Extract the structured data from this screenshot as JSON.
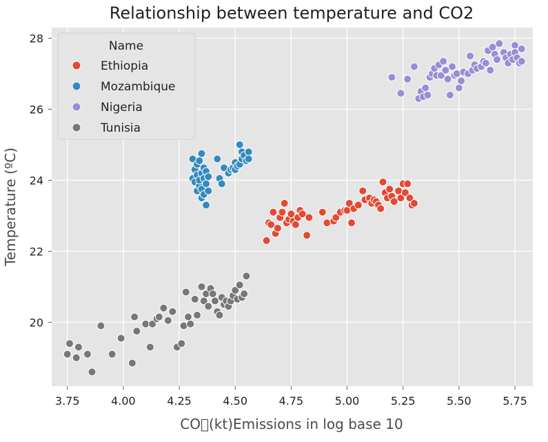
{
  "chart_data": {
    "type": "scatter",
    "title": "Relationship between temperature and CO2",
    "xlabel": "CO\u0000(kt)Emissions in log base 10",
    "ylabel": "Temperature (ºC)",
    "xlim": [
      3.68,
      5.83
    ],
    "ylim": [
      18.2,
      28.3
    ],
    "xticks": [
      "3.75",
      "4.00",
      "4.25",
      "4.50",
      "4.75",
      "5.00",
      "5.25",
      "5.50",
      "5.75"
    ],
    "xtick_values": [
      3.75,
      4.0,
      4.25,
      4.5,
      4.75,
      5.0,
      5.25,
      5.5,
      5.75
    ],
    "yticks": [
      "20",
      "22",
      "24",
      "26",
      "28"
    ],
    "ytick_values": [
      20,
      22,
      24,
      26,
      28
    ],
    "grid": true,
    "background": "#e5e5e5",
    "legend": {
      "title": "Name",
      "position": "top-left"
    },
    "series": [
      {
        "name": "Ethiopia",
        "color": "#e24a33",
        "points": [
          [
            4.64,
            22.3
          ],
          [
            4.65,
            22.8
          ],
          [
            4.66,
            22.75
          ],
          [
            4.67,
            23.1
          ],
          [
            4.68,
            22.5
          ],
          [
            4.69,
            22.65
          ],
          [
            4.7,
            22.95
          ],
          [
            4.71,
            23.1
          ],
          [
            4.72,
            23.35
          ],
          [
            4.73,
            22.8
          ],
          [
            4.74,
            22.9
          ],
          [
            4.75,
            23.05
          ],
          [
            4.76,
            22.85
          ],
          [
            4.77,
            22.75
          ],
          [
            4.78,
            22.95
          ],
          [
            4.79,
            23.15
          ],
          [
            4.8,
            23.05
          ],
          [
            4.82,
            22.45
          ],
          [
            4.83,
            22.95
          ],
          [
            4.89,
            23.1
          ],
          [
            4.91,
            22.8
          ],
          [
            4.94,
            22.85
          ],
          [
            4.95,
            22.95
          ],
          [
            4.97,
            23.1
          ],
          [
            4.99,
            23.15
          ],
          [
            5.0,
            23.15
          ],
          [
            5.01,
            23.35
          ],
          [
            5.02,
            22.8
          ],
          [
            5.03,
            23.2
          ],
          [
            5.05,
            23.3
          ],
          [
            5.07,
            23.7
          ],
          [
            5.08,
            23.45
          ],
          [
            5.1,
            23.5
          ],
          [
            5.11,
            23.35
          ],
          [
            5.12,
            23.45
          ],
          [
            5.13,
            23.4
          ],
          [
            5.14,
            23.3
          ],
          [
            5.15,
            23.2
          ],
          [
            5.16,
            23.95
          ],
          [
            5.17,
            23.65
          ],
          [
            5.18,
            23.5
          ],
          [
            5.19,
            23.75
          ],
          [
            5.2,
            23.55
          ],
          [
            5.21,
            23.4
          ],
          [
            5.23,
            23.7
          ],
          [
            5.24,
            23.5
          ],
          [
            5.25,
            23.9
          ],
          [
            5.26,
            23.65
          ],
          [
            5.27,
            23.9
          ],
          [
            5.28,
            23.5
          ],
          [
            5.29,
            23.3
          ],
          [
            5.3,
            23.35
          ]
        ]
      },
      {
        "name": "Mozambique",
        "color": "#348abd",
        "points": [
          [
            4.31,
            24.05
          ],
          [
            4.31,
            24.6
          ],
          [
            4.32,
            23.95
          ],
          [
            4.32,
            24.3
          ],
          [
            4.33,
            23.7
          ],
          [
            4.33,
            24.45
          ],
          [
            4.33,
            24.15
          ],
          [
            4.34,
            23.85
          ],
          [
            4.34,
            24.55
          ],
          [
            4.34,
            24.0
          ],
          [
            4.35,
            23.5
          ],
          [
            4.35,
            24.2
          ],
          [
            4.35,
            24.75
          ],
          [
            4.35,
            23.75
          ],
          [
            4.36,
            24.35
          ],
          [
            4.36,
            24.05
          ],
          [
            4.36,
            23.6
          ],
          [
            4.37,
            23.3
          ],
          [
            4.37,
            23.9
          ],
          [
            4.37,
            24.25
          ],
          [
            4.38,
            23.7
          ],
          [
            4.38,
            24.1
          ],
          [
            4.42,
            24.6
          ],
          [
            4.43,
            24.05
          ],
          [
            4.44,
            23.9
          ],
          [
            4.45,
            24.35
          ],
          [
            4.47,
            24.2
          ],
          [
            4.48,
            24.3
          ],
          [
            4.49,
            24.35
          ],
          [
            4.5,
            24.5
          ],
          [
            4.5,
            24.3
          ],
          [
            4.51,
            24.4
          ],
          [
            4.52,
            25.0
          ],
          [
            4.52,
            24.45
          ],
          [
            4.53,
            24.6
          ],
          [
            4.53,
            24.8
          ],
          [
            4.54,
            24.7
          ],
          [
            4.55,
            24.55
          ],
          [
            4.56,
            24.8
          ],
          [
            4.56,
            24.6
          ]
        ]
      },
      {
        "name": "Nigeria",
        "color": "#988ed5",
        "points": [
          [
            5.2,
            26.9
          ],
          [
            5.24,
            26.45
          ],
          [
            5.27,
            26.85
          ],
          [
            5.3,
            27.2
          ],
          [
            5.32,
            26.3
          ],
          [
            5.33,
            26.5
          ],
          [
            5.34,
            26.35
          ],
          [
            5.35,
            26.6
          ],
          [
            5.36,
            26.4
          ],
          [
            5.37,
            26.9
          ],
          [
            5.38,
            27.0
          ],
          [
            5.39,
            27.15
          ],
          [
            5.4,
            26.95
          ],
          [
            5.41,
            27.25
          ],
          [
            5.42,
            26.95
          ],
          [
            5.43,
            27.35
          ],
          [
            5.44,
            27.1
          ],
          [
            5.45,
            26.85
          ],
          [
            5.46,
            26.4
          ],
          [
            5.47,
            27.2
          ],
          [
            5.48,
            26.95
          ],
          [
            5.49,
            27.0
          ],
          [
            5.5,
            26.6
          ],
          [
            5.51,
            26.8
          ],
          [
            5.52,
            27.05
          ],
          [
            5.54,
            27.0
          ],
          [
            5.55,
            27.5
          ],
          [
            5.56,
            27.1
          ],
          [
            5.57,
            27.25
          ],
          [
            5.58,
            27.15
          ],
          [
            5.6,
            27.2
          ],
          [
            5.61,
            27.35
          ],
          [
            5.62,
            27.3
          ],
          [
            5.63,
            27.65
          ],
          [
            5.64,
            27.1
          ],
          [
            5.65,
            27.75
          ],
          [
            5.66,
            27.55
          ],
          [
            5.67,
            27.4
          ],
          [
            5.68,
            27.85
          ],
          [
            5.7,
            27.6
          ],
          [
            5.71,
            27.45
          ],
          [
            5.72,
            27.3
          ],
          [
            5.73,
            27.55
          ],
          [
            5.74,
            27.4
          ],
          [
            5.75,
            27.8
          ],
          [
            5.75,
            27.6
          ],
          [
            5.76,
            27.45
          ],
          [
            5.77,
            27.3
          ],
          [
            5.78,
            27.7
          ],
          [
            5.78,
            27.35
          ]
        ]
      },
      {
        "name": "Tunisia",
        "color": "#777777",
        "points": [
          [
            3.75,
            19.1
          ],
          [
            3.76,
            19.4
          ],
          [
            3.79,
            19.0
          ],
          [
            3.8,
            19.3
          ],
          [
            3.84,
            19.1
          ],
          [
            3.86,
            18.6
          ],
          [
            3.9,
            19.9
          ],
          [
            3.95,
            19.1
          ],
          [
            3.99,
            19.55
          ],
          [
            4.04,
            18.85
          ],
          [
            4.05,
            20.15
          ],
          [
            4.06,
            19.75
          ],
          [
            4.1,
            19.95
          ],
          [
            4.12,
            19.3
          ],
          [
            4.13,
            19.95
          ],
          [
            4.15,
            20.1
          ],
          [
            4.16,
            20.15
          ],
          [
            4.18,
            20.4
          ],
          [
            4.2,
            20.05
          ],
          [
            4.22,
            20.3
          ],
          [
            4.24,
            19.3
          ],
          [
            4.26,
            19.4
          ],
          [
            4.27,
            19.9
          ],
          [
            4.28,
            20.85
          ],
          [
            4.29,
            20.15
          ],
          [
            4.3,
            19.95
          ],
          [
            4.32,
            20.65
          ],
          [
            4.33,
            20.2
          ],
          [
            4.35,
            21.0
          ],
          [
            4.36,
            20.6
          ],
          [
            4.37,
            20.8
          ],
          [
            4.38,
            20.45
          ],
          [
            4.39,
            20.95
          ],
          [
            4.4,
            20.8
          ],
          [
            4.41,
            20.6
          ],
          [
            4.42,
            20.3
          ],
          [
            4.43,
            20.2
          ],
          [
            4.44,
            20.7
          ],
          [
            4.45,
            20.5
          ],
          [
            4.46,
            20.6
          ],
          [
            4.47,
            20.45
          ],
          [
            4.48,
            20.6
          ],
          [
            4.49,
            20.75
          ],
          [
            4.5,
            20.9
          ],
          [
            4.51,
            20.65
          ],
          [
            4.52,
            21.05
          ],
          [
            4.53,
            20.7
          ],
          [
            4.54,
            20.8
          ],
          [
            4.55,
            21.3
          ]
        ]
      }
    ]
  }
}
